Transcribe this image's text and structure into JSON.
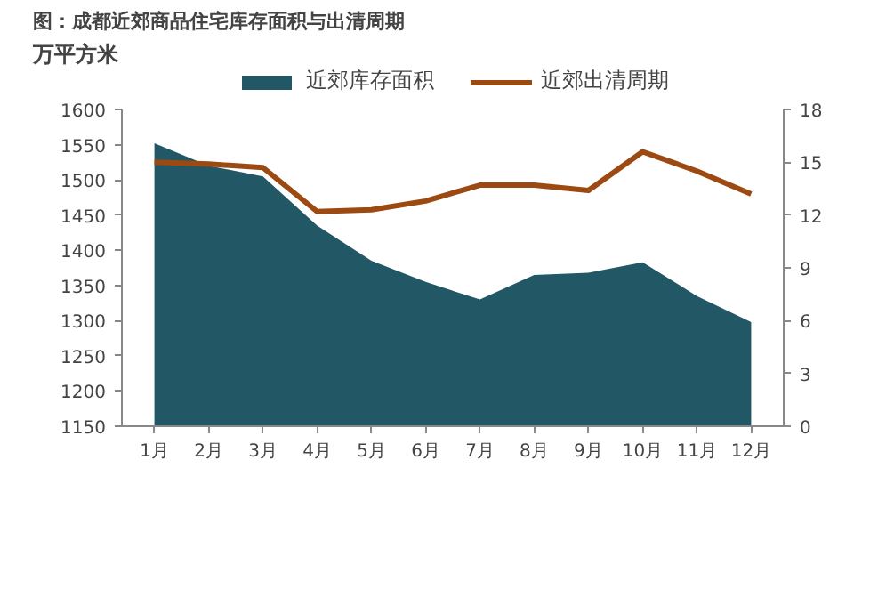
{
  "chart_data": {
    "type": "area",
    "title": "图：成都近郊商品住宅库存面积与出清周期",
    "ylabel": "万平方米",
    "categories": [
      "1月",
      "2月",
      "3月",
      "4月",
      "5月",
      "6月",
      "7月",
      "8月",
      "9月",
      "10月",
      "11月",
      "12月"
    ],
    "series": [
      {
        "name": "近郊库存面积",
        "color": "#225766",
        "values": [
          1552,
          1520,
          1505,
          1435,
          1385,
          1355,
          1330,
          1365,
          1368,
          1383,
          1335,
          1298
        ]
      },
      {
        "name": "近郊出清周期",
        "type": "line",
        "color": "#9c4a12",
        "axis": "y2",
        "values": [
          15.0,
          14.9,
          14.7,
          12.2,
          12.3,
          12.8,
          13.7,
          13.7,
          13.4,
          15.6,
          14.5,
          13.2
        ]
      }
    ],
    "ylim": [
      1150,
      1600
    ],
    "yticks": [
      1150,
      1200,
      1250,
      1300,
      1350,
      1400,
      1450,
      1500,
      1550,
      1600
    ],
    "y2lim": [
      0,
      18
    ],
    "y2ticks": [
      0,
      3,
      6,
      9,
      12,
      15,
      18
    ],
    "grid": false,
    "legend": "top"
  }
}
